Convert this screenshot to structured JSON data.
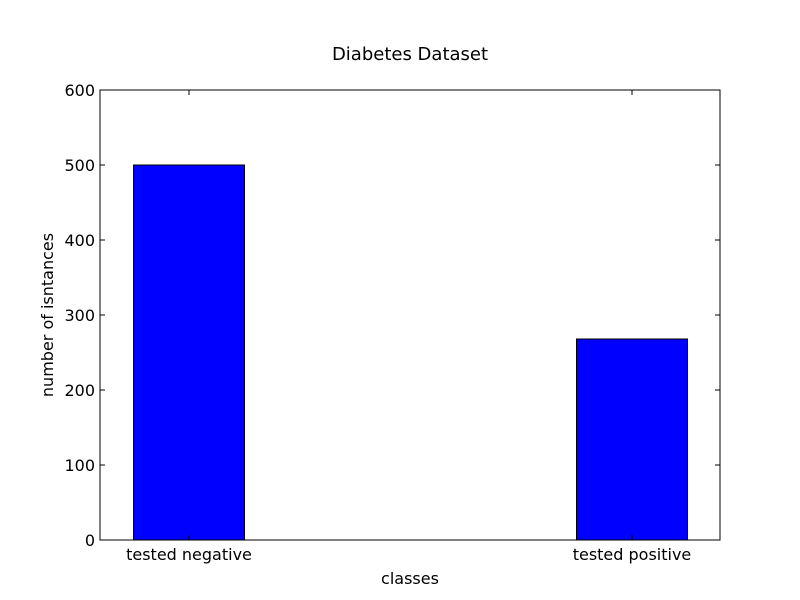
{
  "chart_data": {
    "type": "bar",
    "title": "Diabetes Dataset",
    "xlabel": "classes",
    "ylabel": "number of isntances",
    "categories": [
      "tested negative",
      "tested positive"
    ],
    "values": [
      500,
      268
    ],
    "ylim": [
      0,
      600
    ],
    "yticks": [
      "0",
      "100",
      "200",
      "300",
      "400",
      "500",
      "600"
    ],
    "bar_color": "#0000ff",
    "grid": false
  }
}
